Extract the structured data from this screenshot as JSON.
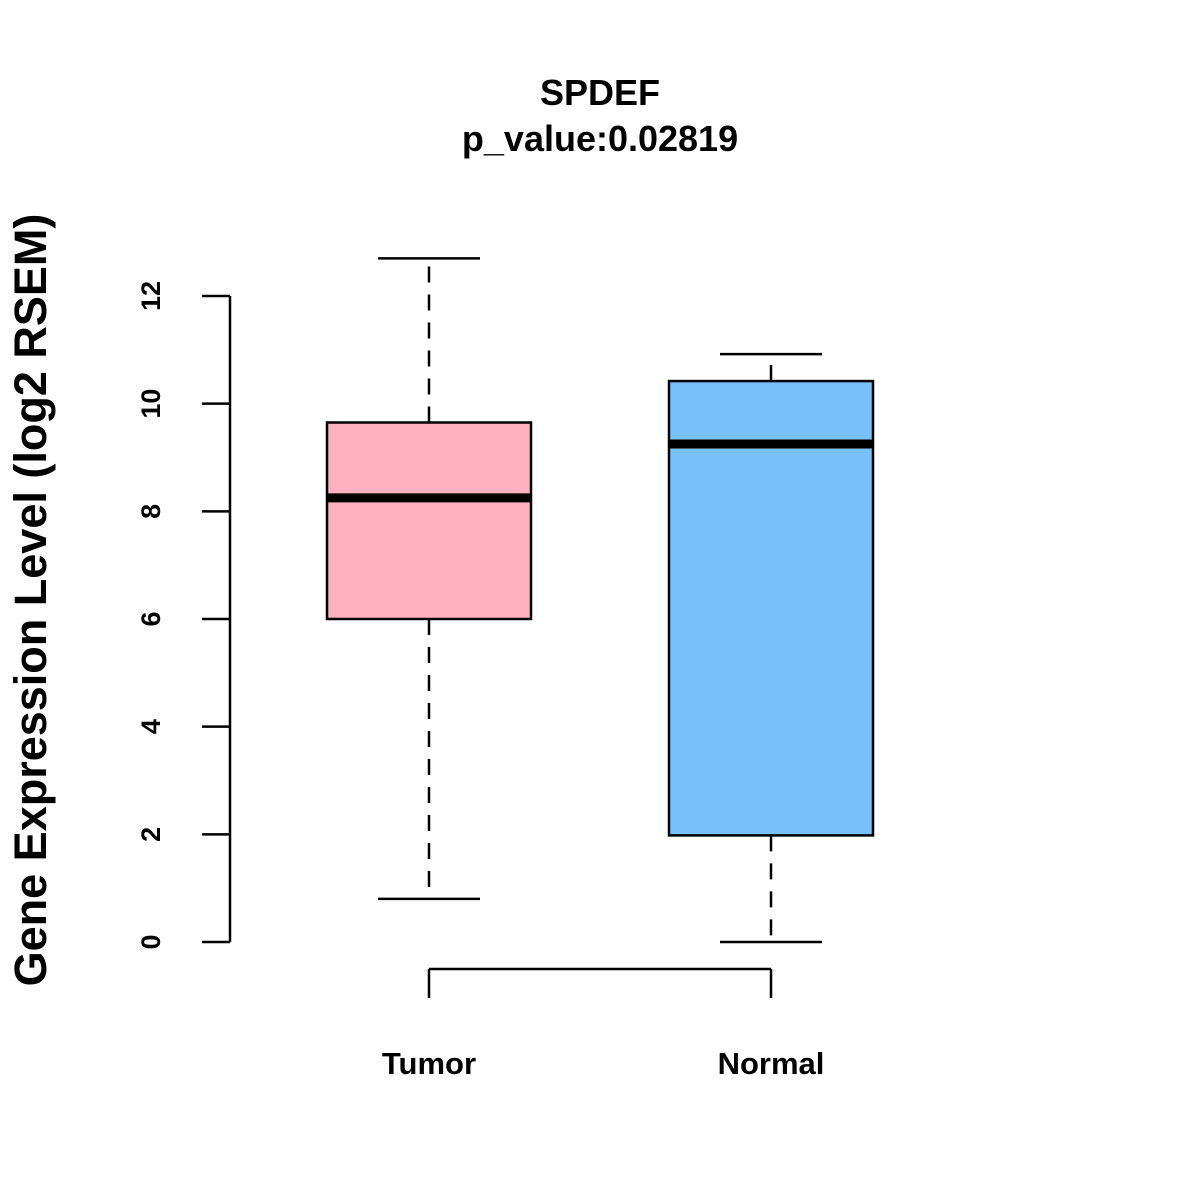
{
  "chart_data": {
    "type": "boxplot",
    "title": "SPDEF",
    "subtitle": "p_value:0.02819",
    "xlabel": "",
    "ylabel": "Gene Expression Level (log2 RSEM)",
    "ylim": [
      0,
      12
    ],
    "yticks": [
      0,
      2,
      4,
      6,
      8,
      10,
      12
    ],
    "categories": [
      "Tumor",
      "Normal"
    ],
    "boxes": [
      {
        "name": "Tumor",
        "whisker_low": 0.8,
        "q1": 6.0,
        "median": 8.25,
        "q3": 9.65,
        "whisker_high": 12.7,
        "color": "#FFB1C2"
      },
      {
        "name": "Normal",
        "whisker_low": 0.0,
        "q1": 1.98,
        "median": 9.25,
        "q3": 10.42,
        "whisker_high": 10.92,
        "color": "#78C0FA"
      }
    ],
    "grid": false,
    "legend": "none"
  }
}
